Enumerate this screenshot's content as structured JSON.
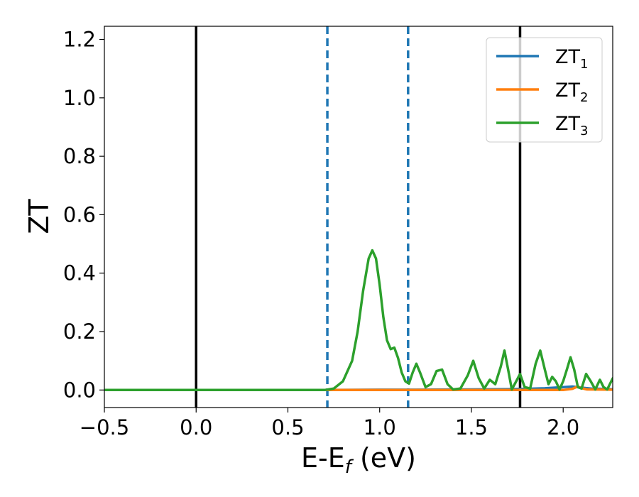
{
  "chart_data": {
    "type": "line",
    "xlabel_main": "E-E",
    "xlabel_sub": "f",
    "xlabel_tail": " (eV)",
    "ylabel": "ZT",
    "xlim": [
      -0.5,
      2.27
    ],
    "ylim": [
      -0.06,
      1.245
    ],
    "x_ticks": [
      {
        "value": -0.5,
        "label": "−0.5"
      },
      {
        "value": 0.0,
        "label": "0.0"
      },
      {
        "value": 0.5,
        "label": "0.5"
      },
      {
        "value": 1.0,
        "label": "1.0"
      },
      {
        "value": 1.5,
        "label": "1.5"
      },
      {
        "value": 2.0,
        "label": "2.0"
      }
    ],
    "y_ticks": [
      {
        "value": 0.0,
        "label": "0.0"
      },
      {
        "value": 0.2,
        "label": "0.2"
      },
      {
        "value": 0.4,
        "label": "0.4"
      },
      {
        "value": 0.6,
        "label": "0.6"
      },
      {
        "value": 0.8,
        "label": "0.8"
      },
      {
        "value": 1.0,
        "label": "1.0"
      },
      {
        "value": 1.2,
        "label": "1.2"
      }
    ],
    "vlines": [
      {
        "x": 0.0,
        "style": "solid",
        "color": "#000000"
      },
      {
        "x": 1.765,
        "style": "solid",
        "color": "#000000"
      },
      {
        "x": 0.715,
        "style": "dashed",
        "color": "#1f77b4"
      },
      {
        "x": 1.155,
        "style": "dashed",
        "color": "#1f77b4"
      }
    ],
    "legend": {
      "placement": "top-right",
      "entries": [
        {
          "base": "ZT",
          "sub": "1",
          "color": "#1f77b4"
        },
        {
          "base": "ZT",
          "sub": "2",
          "color": "#ff7f0e"
        },
        {
          "base": "ZT",
          "sub": "3",
          "color": "#2ca02c"
        }
      ]
    },
    "series": [
      {
        "color": "#1f77b4",
        "x": [
          -0.5,
          0.7,
          1.0,
          1.2,
          1.5,
          1.7,
          1.8,
          1.9,
          2.0,
          2.05,
          2.1,
          2.15,
          2.27
        ],
        "y": [
          0.0,
          0.0,
          0.001,
          0.001,
          0.002,
          0.003,
          0.004,
          0.006,
          0.01,
          0.012,
          0.008,
          0.005,
          0.003
        ]
      },
      {
        "color": "#ff7f0e",
        "x": [
          -0.5,
          2.0,
          2.05,
          2.08,
          2.1,
          2.13,
          2.27
        ],
        "y": [
          0.0,
          0.0,
          0.004,
          0.012,
          0.006,
          0.002,
          0.001
        ]
      },
      {
        "color": "#2ca02c",
        "x": [
          -0.5,
          0.7,
          0.75,
          0.8,
          0.85,
          0.88,
          0.91,
          0.94,
          0.96,
          0.98,
          1.0,
          1.02,
          1.04,
          1.06,
          1.08,
          1.1,
          1.12,
          1.14,
          1.16,
          1.18,
          1.2,
          1.22,
          1.25,
          1.28,
          1.31,
          1.34,
          1.37,
          1.4,
          1.44,
          1.48,
          1.51,
          1.54,
          1.57,
          1.6,
          1.63,
          1.66,
          1.68,
          1.7,
          1.72,
          1.74,
          1.765,
          1.79,
          1.82,
          1.85,
          1.875,
          1.9,
          1.92,
          1.94,
          1.96,
          1.98,
          2.0,
          2.02,
          2.04,
          2.06,
          2.08,
          2.1,
          2.125,
          2.15,
          2.175,
          2.2,
          2.22,
          2.24,
          2.27
        ],
        "y": [
          0.0,
          0.0,
          0.005,
          0.03,
          0.1,
          0.2,
          0.34,
          0.45,
          0.478,
          0.45,
          0.36,
          0.25,
          0.17,
          0.14,
          0.145,
          0.11,
          0.06,
          0.03,
          0.022,
          0.06,
          0.09,
          0.06,
          0.01,
          0.02,
          0.065,
          0.07,
          0.02,
          0.002,
          0.005,
          0.05,
          0.1,
          0.04,
          0.005,
          0.035,
          0.02,
          0.08,
          0.135,
          0.07,
          0.002,
          0.025,
          0.055,
          0.01,
          0.005,
          0.09,
          0.135,
          0.07,
          0.02,
          0.045,
          0.03,
          0.002,
          0.03,
          0.07,
          0.112,
          0.07,
          0.01,
          0.005,
          0.055,
          0.03,
          0.002,
          0.035,
          0.01,
          0.002,
          0.04
        ]
      }
    ]
  }
}
